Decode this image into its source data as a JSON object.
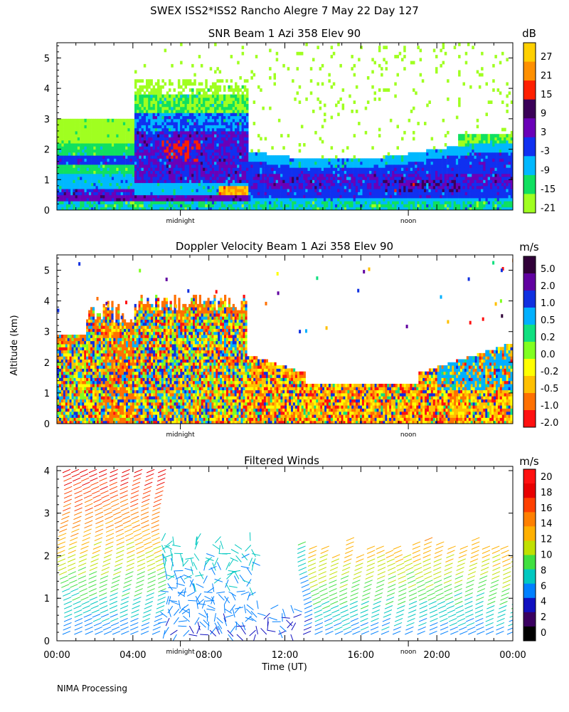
{
  "header": {
    "title": "SWEX ISS2*ISS2 Rancho Alegre   7 May 22 Day 127",
    "y_axis_label": "Altitude (km)",
    "x_axis_label": "Time (UT)",
    "footer": "NIMA Processing",
    "midnight_label": "midnight",
    "noon_label": "noon"
  },
  "chart_data": [
    {
      "type": "heatmap",
      "title": "SNR Beam 1 Azi 358 Elev 90",
      "unit": "dB",
      "ylabel": "Altitude (km)",
      "ylim": [
        0,
        5.5
      ],
      "y_ticks": [
        0,
        1,
        2,
        3,
        4,
        5
      ],
      "colorbar_labels": [
        "27",
        "21",
        "15",
        "9",
        "3",
        "-3",
        "-9",
        "-15",
        "-21"
      ],
      "colorbar_colors": [
        "#ffd000",
        "#ff9000",
        "#ff2000",
        "#3a0058",
        "#6a00b8",
        "#1030f0",
        "#00b8ff",
        "#10e060",
        "#a0ff20"
      ]
    },
    {
      "type": "heatmap",
      "title": "Doppler Velocity Beam 1 Azi 358 Elev 90",
      "unit": "m/s",
      "ylabel": "Altitude (km)",
      "ylim": [
        0,
        5.5
      ],
      "y_ticks": [
        0,
        1,
        2,
        3,
        4,
        5
      ],
      "colorbar_labels": [
        "5.0",
        "2.0",
        "1.0",
        "0.5",
        "0.2",
        "0.0",
        "-0.2",
        "-0.5",
        "-1.0",
        "-2.0"
      ],
      "colorbar_colors": [
        "#300038",
        "#6000a0",
        "#1030e0",
        "#00b0ff",
        "#10e080",
        "#80ff20",
        "#ffff00",
        "#ffc000",
        "#ff7000",
        "#ff1010"
      ]
    },
    {
      "type": "scatter",
      "title": "Filtered Winds",
      "unit": "m/s",
      "xlabel": "Time (UT)",
      "ylabel": "Altitude (km)",
      "ylim": [
        0,
        4.1
      ],
      "y_ticks": [
        0,
        1,
        2,
        3,
        4
      ],
      "x_ticks": [
        "00:00",
        "04:00",
        "08:00",
        "12:00",
        "16:00",
        "20:00",
        "00:00"
      ],
      "colorbar_labels": [
        "20",
        "18",
        "16",
        "14",
        "12",
        "10",
        "8",
        "6",
        "4",
        "2",
        "0"
      ],
      "colorbar_colors": [
        "#ff1010",
        "#e80000",
        "#ff4000",
        "#ff8000",
        "#ffb000",
        "#c0e000",
        "#40e040",
        "#00c8c0",
        "#0080ff",
        "#1010c0",
        "#3a0060",
        "#000000"
      ]
    }
  ]
}
